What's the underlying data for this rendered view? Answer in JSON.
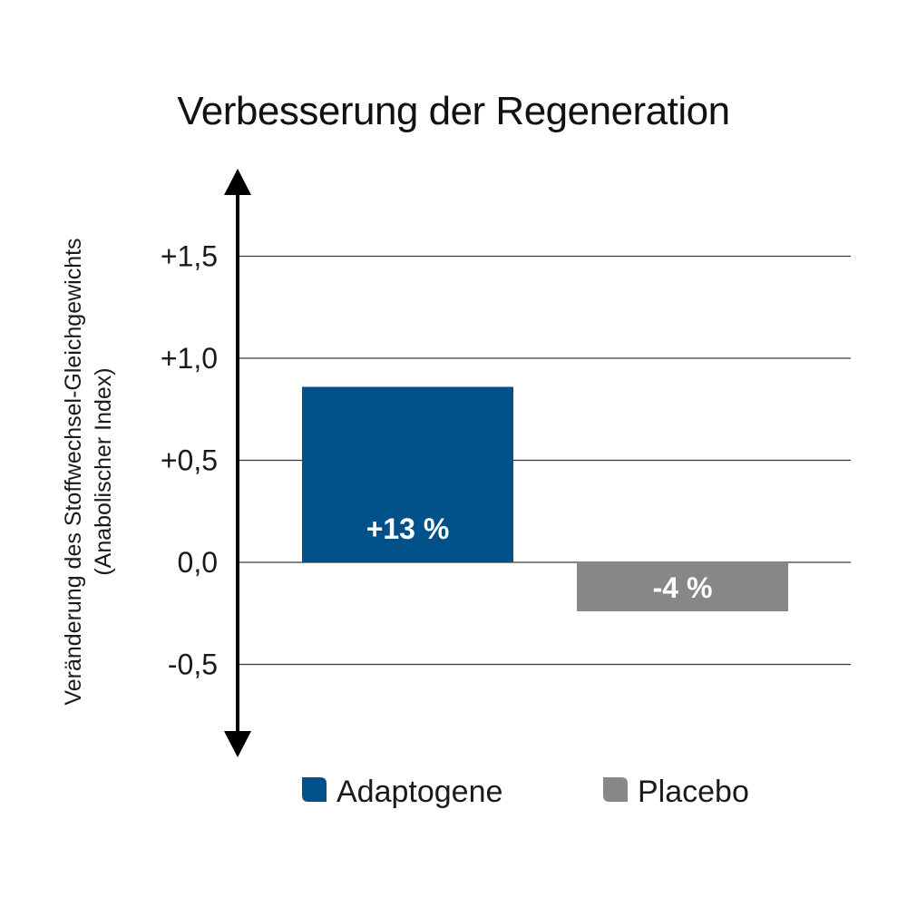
{
  "chart_data": {
    "type": "bar",
    "title": "Verbesserung der Regeneration",
    "ylabel_line1": "Veränderung des Stoffwechsel-Gleichgewichts",
    "ylabel_line2": "(Anabolischer Index)",
    "xlabel": "",
    "ylim": [
      -0.9,
      1.9
    ],
    "yticks": [
      {
        "value": 1.5,
        "label": "+1,5"
      },
      {
        "value": 1.0,
        "label": "+1,0"
      },
      {
        "value": 0.5,
        "label": "+0,5"
      },
      {
        "value": 0.0,
        "label": "0,0"
      },
      {
        "value": -0.5,
        "label": "-0,5"
      }
    ],
    "grid": true,
    "legend_position": "bottom",
    "series": [
      {
        "name": "Adaptogene",
        "value": 0.86,
        "label": "+13 %",
        "color": "#00508a"
      },
      {
        "name": "Placebo",
        "value": -0.24,
        "label": "-4 %",
        "color": "#878787"
      }
    ]
  }
}
